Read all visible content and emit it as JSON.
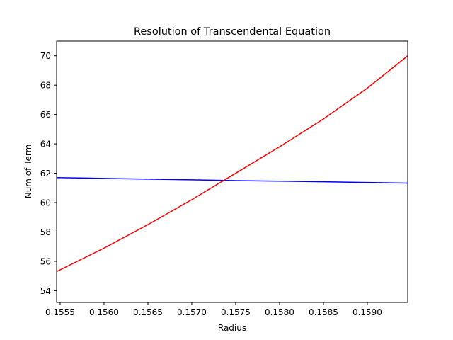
{
  "chart_data": {
    "type": "line",
    "title": "Resolution of Transcendental Equation",
    "xlabel": "Radius",
    "ylabel": "Num of Term",
    "xlim": [
      0.15546,
      0.15946
    ],
    "ylim": [
      53.2,
      71.0
    ],
    "grid": false,
    "x_ticks": [
      "0.1555",
      "0.1560",
      "0.1565",
      "0.1570",
      "0.1575",
      "0.1580",
      "0.1585",
      "0.1590"
    ],
    "x_tick_values": [
      0.1555,
      0.156,
      0.1565,
      0.157,
      0.1575,
      0.158,
      0.1585,
      0.159
    ],
    "y_ticks": [
      "54",
      "56",
      "58",
      "60",
      "62",
      "64",
      "66",
      "68",
      "70"
    ],
    "y_tick_values": [
      54,
      56,
      58,
      60,
      62,
      64,
      66,
      68,
      70
    ],
    "series": [
      {
        "color": "#0000ff",
        "x": [
          0.15546,
          0.156,
          0.1565,
          0.157,
          0.1575,
          0.158,
          0.1585,
          0.159,
          0.15946
        ],
        "y": [
          61.7,
          61.65,
          61.6,
          61.55,
          61.5,
          61.46,
          61.42,
          61.37,
          61.33
        ]
      },
      {
        "color": "#ff0000",
        "x": [
          0.15546,
          0.156,
          0.1565,
          0.157,
          0.1575,
          0.158,
          0.1585,
          0.159,
          0.15946
        ],
        "y": [
          55.3,
          56.9,
          58.5,
          60.2,
          62.0,
          63.8,
          65.7,
          67.8,
          70.0
        ]
      }
    ]
  }
}
